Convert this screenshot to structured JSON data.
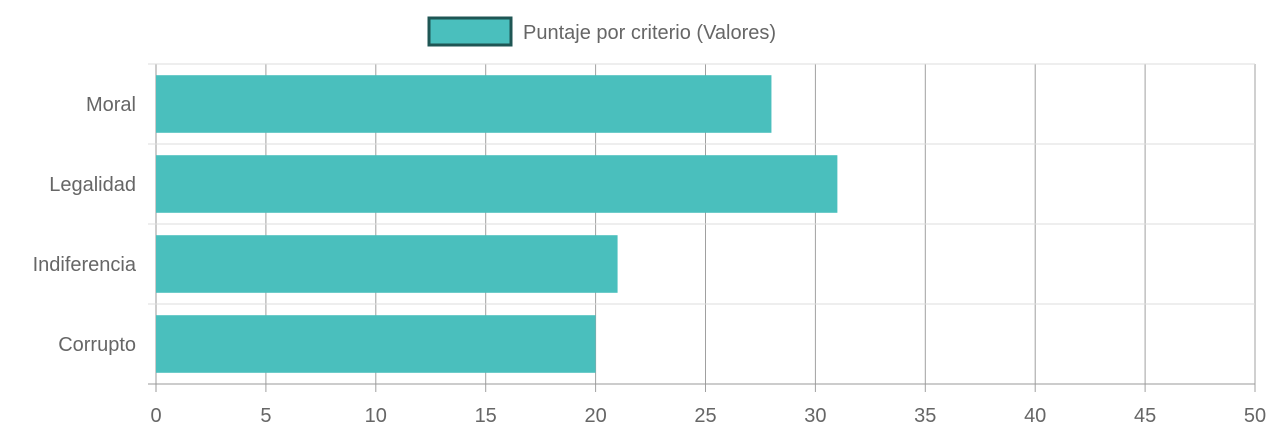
{
  "chart_data": {
    "type": "bar",
    "orientation": "horizontal",
    "categories": [
      "Moral",
      "Legalidad",
      "Indiferencia",
      "Corrupto"
    ],
    "series": [
      {
        "name": "Puntaje por criterio (Valores)",
        "values": [
          28,
          31,
          21,
          20
        ],
        "color": "#4ABFBD",
        "legend_border_color": "#1F5654"
      }
    ],
    "x_ticks": [
      0,
      5,
      10,
      15,
      20,
      25,
      30,
      35,
      40,
      45,
      50
    ],
    "xlim": [
      0,
      50
    ],
    "grid": true,
    "legend_position": "top-center",
    "title": "",
    "xlabel": "",
    "ylabel": ""
  },
  "colors": {
    "grid": "#dddddd",
    "grid_dark": "#999999",
    "text": "#666666"
  }
}
